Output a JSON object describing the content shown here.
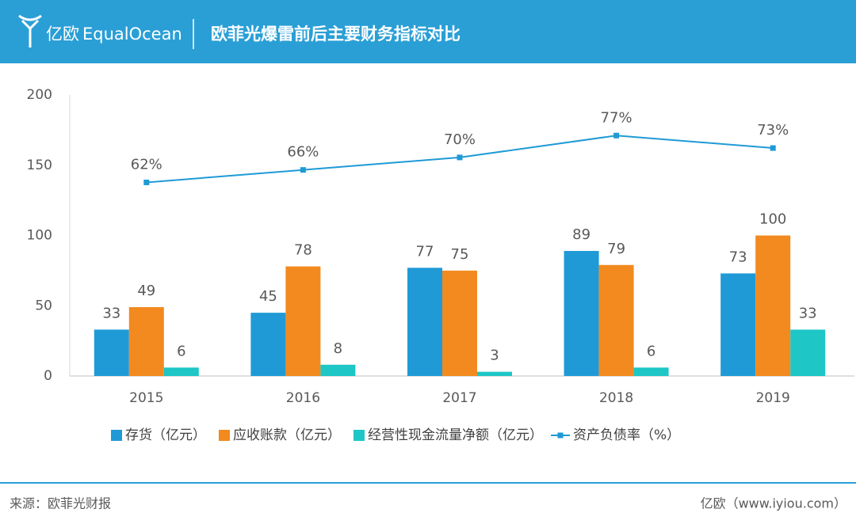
{
  "logo": {
    "cn": "亿欧",
    "en": "EqualOcean"
  },
  "header": {
    "title": "欧菲光爆雷前后主要财务指标对比"
  },
  "footer": {
    "source": "来源：欧菲光财报",
    "credit": "亿欧（www.iyiou.com）"
  },
  "chart_data": {
    "type": "bar",
    "categories": [
      "2015",
      "2016",
      "2017",
      "2018",
      "2019"
    ],
    "series": [
      {
        "name": "存货（亿元）",
        "color": "#1f9ad6",
        "values": [
          33,
          45,
          77,
          89,
          73
        ]
      },
      {
        "name": "应收账款（亿元）",
        "color": "#f28a1f",
        "values": [
          49,
          78,
          75,
          79,
          100
        ]
      },
      {
        "name": "经营性现金流量净额（亿元）",
        "color": "#1ec6c6",
        "values": [
          6,
          8,
          3,
          6,
          33
        ]
      },
      {
        "name": "资产负债率（%）",
        "color": "#1f9ad6",
        "type": "line",
        "axis": "y2",
        "values": [
          62,
          66,
          70,
          77,
          73
        ],
        "value_labels": [
          "62%",
          "66%",
          "70%",
          "77%",
          "73%"
        ]
      }
    ],
    "ylim": [
      0,
      200
    ],
    "yticks": [
      0,
      50,
      100,
      150,
      200
    ],
    "y2lim": [
      0,
      90
    ],
    "grid": false,
    "legend": "bottom"
  }
}
